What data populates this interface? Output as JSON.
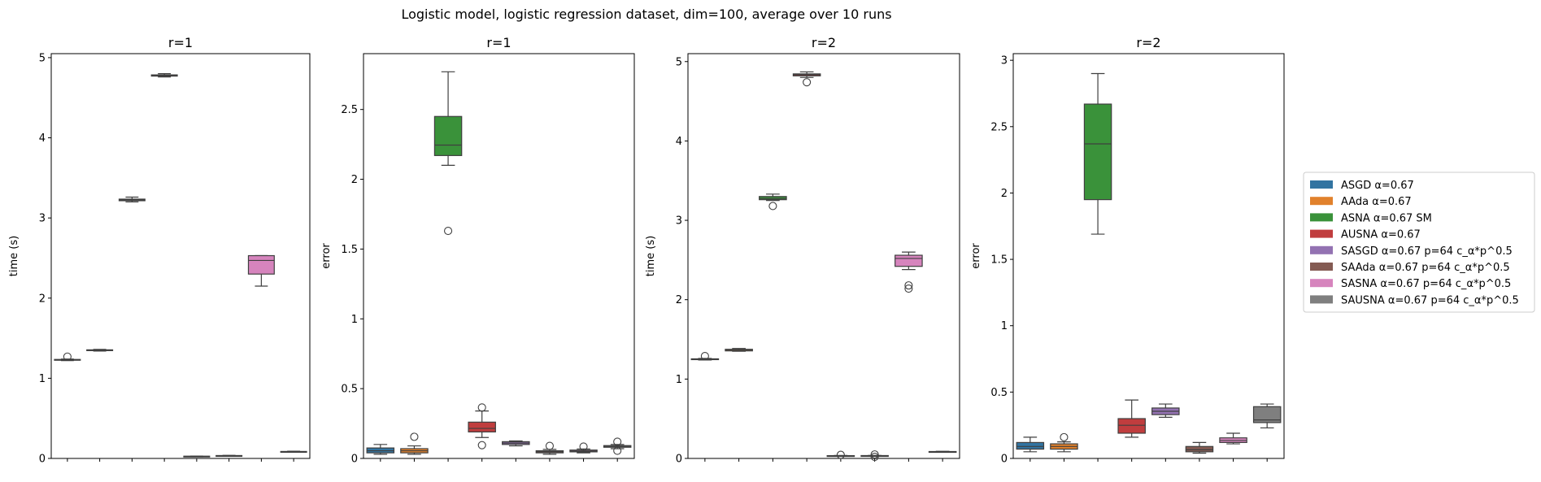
{
  "suptitle": "Logistic model, logistic regression dataset, dim=100, average over 10 runs",
  "legend": {
    "placement": "right",
    "entries": [
      {
        "label": "ASGD α=0.67",
        "color": "#3274a1"
      },
      {
        "label": "AAda α=0.67",
        "color": "#e1812c"
      },
      {
        "label": "ASNA α=0.67 SM",
        "color": "#3a923a"
      },
      {
        "label": "AUSNA α=0.67",
        "color": "#c03d3e"
      },
      {
        "label": "SASGD α=0.67 p=64 c_α*p^0.5",
        "color": "#9372b2"
      },
      {
        "label": "SAAda α=0.67 p=64 c_α*p^0.5",
        "color": "#845b53"
      },
      {
        "label": "SASNA α=0.67 p=64 c_α*p^0.5",
        "color": "#d684bd"
      },
      {
        "label": "SAUSNA α=0.67 p=64 c_α*p^0.5",
        "color": "#7f7f7f"
      }
    ]
  },
  "chart_data": [
    {
      "type": "box",
      "title": "r=1",
      "ylabel": "time (s)",
      "ylim": [
        0,
        5.05
      ],
      "yticks": [
        0,
        1,
        2,
        3,
        4,
        5
      ],
      "boxes": [
        {
          "min": 1.22,
          "q1": 1.225,
          "median": 1.23,
          "q3": 1.235,
          "max": 1.24,
          "outliers": [
            1.27
          ]
        },
        {
          "min": 1.34,
          "q1": 1.345,
          "median": 1.35,
          "q3": 1.355,
          "max": 1.36,
          "outliers": []
        },
        {
          "min": 3.2,
          "q1": 3.215,
          "median": 3.225,
          "q3": 3.235,
          "max": 3.26,
          "outliers": []
        },
        {
          "min": 4.76,
          "q1": 4.77,
          "median": 4.78,
          "q3": 4.785,
          "max": 4.8,
          "outliers": []
        },
        {
          "min": 0.02,
          "q1": 0.024,
          "median": 0.026,
          "q3": 0.028,
          "max": 0.03,
          "outliers": []
        },
        {
          "min": 0.03,
          "q1": 0.032,
          "median": 0.034,
          "q3": 0.036,
          "max": 0.038,
          "outliers": []
        },
        {
          "min": 2.15,
          "q1": 2.3,
          "median": 2.47,
          "q3": 2.53,
          "max": 2.53,
          "outliers": []
        },
        {
          "min": 0.08,
          "q1": 0.083,
          "median": 0.085,
          "q3": 0.087,
          "max": 0.09,
          "outliers": []
        }
      ]
    },
    {
      "type": "box",
      "title": "r=1",
      "ylabel": "error",
      "ylim": [
        0,
        2.9
      ],
      "yticks": [
        0.0,
        0.5,
        1.0,
        1.5,
        2.0,
        2.5
      ],
      "boxes": [
        {
          "min": 0.03,
          "q1": 0.04,
          "median": 0.055,
          "q3": 0.075,
          "max": 0.1,
          "outliers": []
        },
        {
          "min": 0.03,
          "q1": 0.04,
          "median": 0.055,
          "q3": 0.07,
          "max": 0.09,
          "outliers": [
            0.155
          ]
        },
        {
          "min": 2.1,
          "q1": 2.17,
          "median": 2.245,
          "q3": 2.45,
          "max": 2.77,
          "outliers": [
            1.63
          ]
        },
        {
          "min": 0.15,
          "q1": 0.19,
          "median": 0.215,
          "q3": 0.26,
          "max": 0.34,
          "outliers": [
            0.365,
            0.095
          ]
        },
        {
          "min": 0.09,
          "q1": 0.1,
          "median": 0.11,
          "q3": 0.12,
          "max": 0.125,
          "outliers": []
        },
        {
          "min": 0.03,
          "q1": 0.04,
          "median": 0.048,
          "q3": 0.055,
          "max": 0.065,
          "outliers": [
            0.09
          ]
        },
        {
          "min": 0.04,
          "q1": 0.047,
          "median": 0.053,
          "q3": 0.06,
          "max": 0.068,
          "outliers": [
            0.085
          ]
        },
        {
          "min": 0.07,
          "q1": 0.08,
          "median": 0.087,
          "q3": 0.092,
          "max": 0.1,
          "outliers": [
            0.12,
            0.055
          ]
        }
      ]
    },
    {
      "type": "box",
      "title": "r=2",
      "ylabel": "time (s)",
      "ylim": [
        0,
        5.1
      ],
      "yticks": [
        0,
        1,
        2,
        3,
        4,
        5
      ],
      "boxes": [
        {
          "min": 1.24,
          "q1": 1.245,
          "median": 1.25,
          "q3": 1.255,
          "max": 1.26,
          "outliers": [
            1.29
          ]
        },
        {
          "min": 1.35,
          "q1": 1.355,
          "median": 1.365,
          "q3": 1.375,
          "max": 1.385,
          "outliers": []
        },
        {
          "min": 3.25,
          "q1": 3.26,
          "median": 3.275,
          "q3": 3.3,
          "max": 3.33,
          "outliers": [
            3.18
          ]
        },
        {
          "min": 4.8,
          "q1": 4.82,
          "median": 4.835,
          "q3": 4.845,
          "max": 4.87,
          "outliers": [
            4.74
          ]
        },
        {
          "min": 0.028,
          "q1": 0.03,
          "median": 0.032,
          "q3": 0.035,
          "max": 0.038,
          "outliers": [
            0.045
          ]
        },
        {
          "min": 0.028,
          "q1": 0.03,
          "median": 0.033,
          "q3": 0.036,
          "max": 0.038,
          "outliers": [
            0.05,
            0.02
          ]
        },
        {
          "min": 2.38,
          "q1": 2.42,
          "median": 2.52,
          "q3": 2.56,
          "max": 2.6,
          "outliers": [
            2.18,
            2.14
          ]
        },
        {
          "min": 0.08,
          "q1": 0.083,
          "median": 0.085,
          "q3": 0.087,
          "max": 0.09,
          "outliers": []
        }
      ]
    },
    {
      "type": "box",
      "title": "r=2",
      "ylabel": "error",
      "ylim": [
        0,
        3.05
      ],
      "yticks": [
        0.0,
        0.5,
        1.0,
        1.5,
        2.0,
        2.5,
        3.0
      ],
      "boxes": [
        {
          "min": 0.05,
          "q1": 0.07,
          "median": 0.09,
          "q3": 0.12,
          "max": 0.16,
          "outliers": []
        },
        {
          "min": 0.05,
          "q1": 0.07,
          "median": 0.09,
          "q3": 0.11,
          "max": 0.125,
          "outliers": [
            0.16
          ]
        },
        {
          "min": 1.69,
          "q1": 1.95,
          "median": 2.37,
          "q3": 2.67,
          "max": 2.9,
          "outliers": []
        },
        {
          "min": 0.16,
          "q1": 0.19,
          "median": 0.25,
          "q3": 0.3,
          "max": 0.44,
          "outliers": []
        },
        {
          "min": 0.31,
          "q1": 0.33,
          "median": 0.355,
          "q3": 0.38,
          "max": 0.41,
          "outliers": []
        },
        {
          "min": 0.04,
          "q1": 0.05,
          "median": 0.065,
          "q3": 0.09,
          "max": 0.12,
          "outliers": []
        },
        {
          "min": 0.11,
          "q1": 0.12,
          "median": 0.135,
          "q3": 0.155,
          "max": 0.19,
          "outliers": []
        },
        {
          "min": 0.23,
          "q1": 0.27,
          "median": 0.29,
          "q3": 0.39,
          "max": 0.41,
          "outliers": []
        }
      ]
    }
  ]
}
